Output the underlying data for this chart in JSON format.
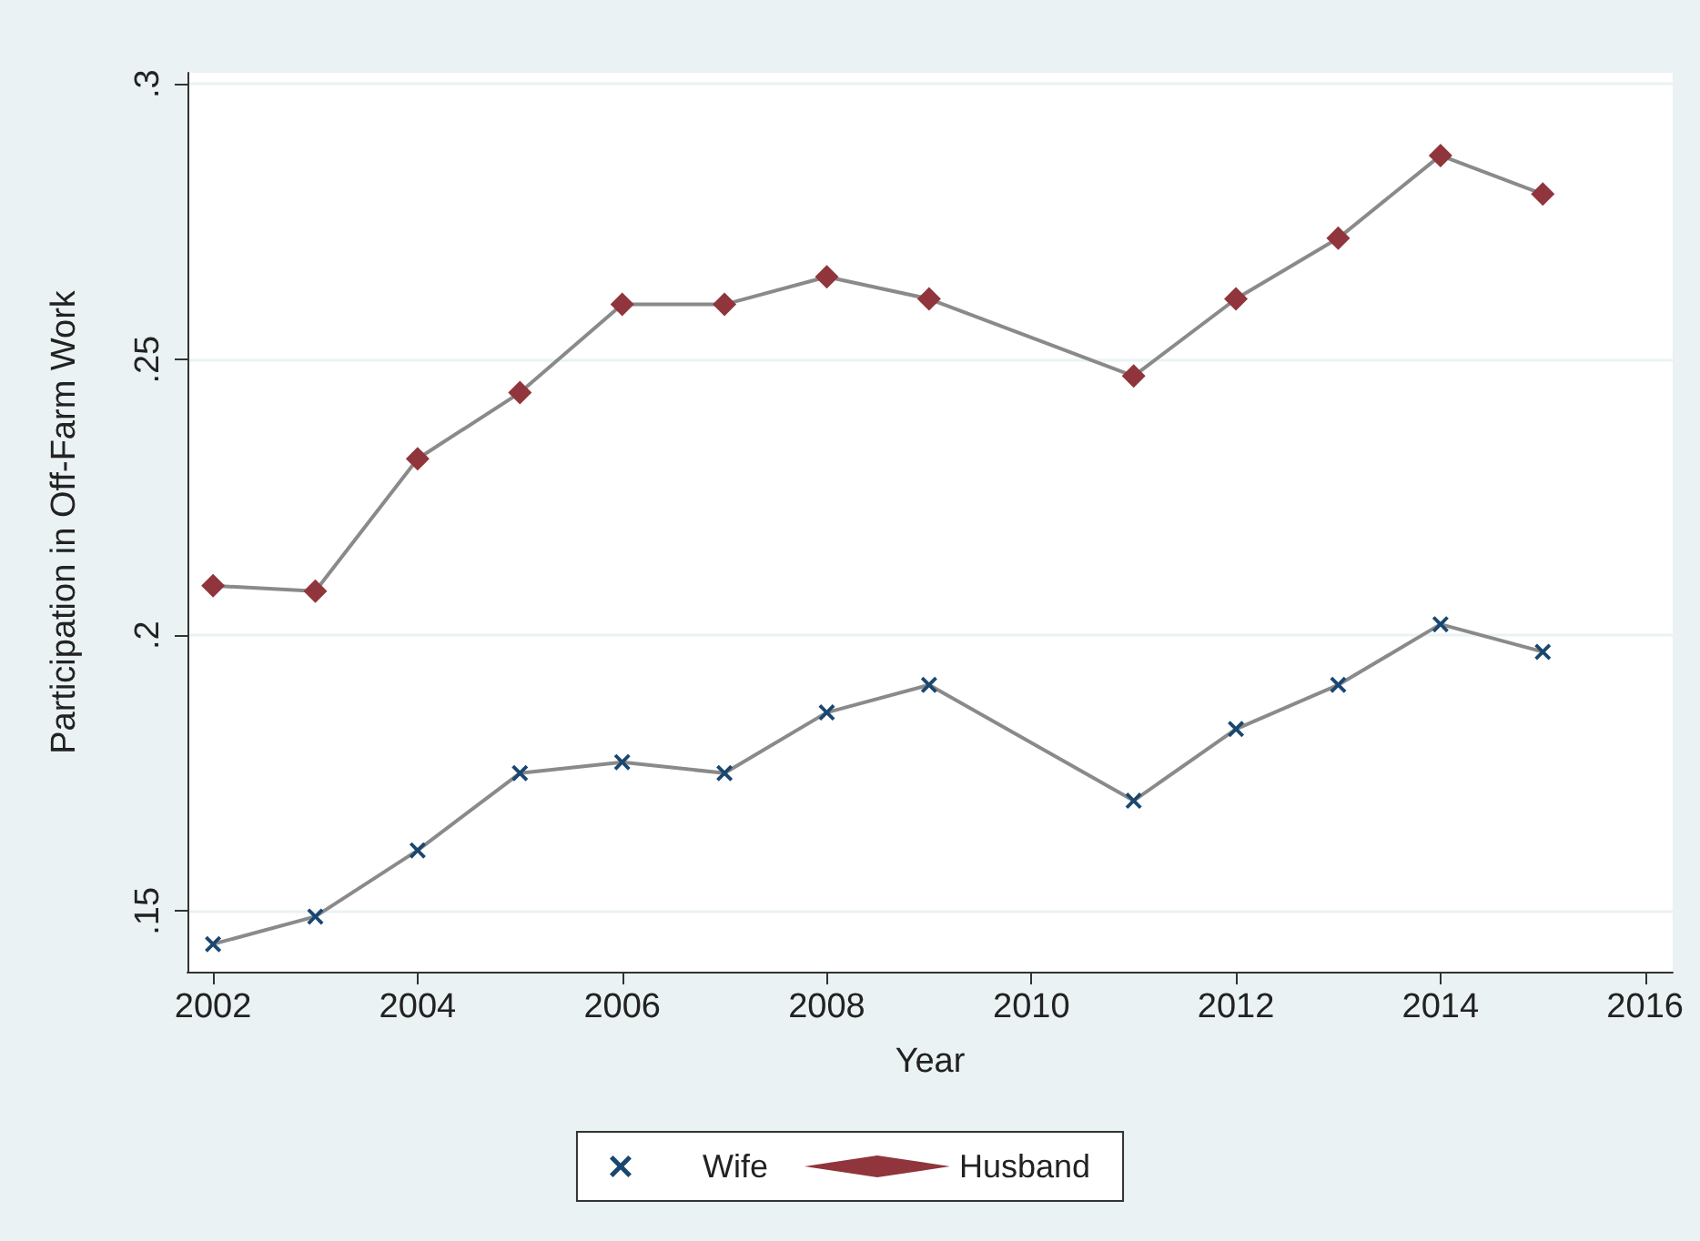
{
  "chart_data": {
    "type": "line",
    "xlabel": "Year",
    "ylabel": "Participation in Off-Farm Work",
    "x": [
      2002,
      2003,
      2004,
      2005,
      2006,
      2007,
      2008,
      2009,
      2011,
      2012,
      2013,
      2014,
      2015
    ],
    "series": [
      {
        "name": "Wife",
        "color": "#1a476f",
        "marker": "cross",
        "values": [
          0.144,
          0.149,
          0.161,
          0.175,
          0.177,
          0.175,
          0.186,
          0.191,
          0.17,
          0.183,
          0.191,
          0.202,
          0.197
        ]
      },
      {
        "name": "Husband",
        "color": "#90353b",
        "marker": "diamond",
        "values": [
          0.209,
          0.208,
          0.232,
          0.244,
          0.26,
          0.26,
          0.265,
          0.261,
          0.247,
          0.261,
          0.272,
          0.287,
          0.28
        ]
      }
    ],
    "xlim": [
      2001.75,
      2016.27
    ],
    "xticks": [
      2002,
      2004,
      2006,
      2008,
      2010,
      2012,
      2014,
      2016
    ],
    "ylim": [
      0.139,
      0.302
    ],
    "yticks": [
      {
        "value": 0.15,
        "label": ".15"
      },
      {
        "value": 0.2,
        "label": ".2"
      },
      {
        "value": 0.25,
        "label": ".25"
      },
      {
        "value": 0.3,
        "label": ".3"
      }
    ],
    "grid": "y",
    "legend": "bottom",
    "line_style": "solid"
  }
}
